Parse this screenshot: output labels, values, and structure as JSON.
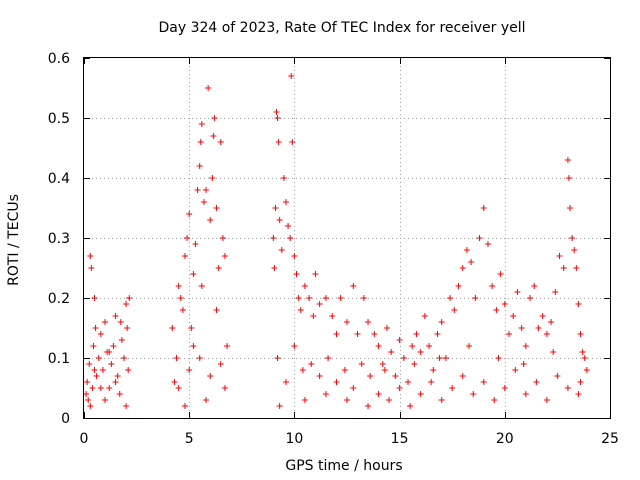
{
  "chart_data": {
    "type": "scatter",
    "title": "Day 324 of 2023, Rate Of TEC Index for receiver yell",
    "xlabel": "GPS time / hours",
    "ylabel": "ROTI / TECUs",
    "xlim": [
      0,
      25
    ],
    "ylim": [
      0,
      0.6
    ],
    "xticks": [
      0,
      5,
      10,
      15,
      20,
      25
    ],
    "yticks": [
      0,
      0.1,
      0.2,
      0.3,
      0.4,
      0.5,
      0.6
    ],
    "ytick_labels": [
      "0",
      "0.1",
      "0.2",
      "0.3",
      "0.4",
      "0.5",
      "0.6"
    ],
    "grid": true,
    "marker": "+",
    "color": "#ff0000",
    "points": [
      [
        0.1,
        0.04
      ],
      [
        0.15,
        0.06
      ],
      [
        0.2,
        0.03
      ],
      [
        0.25,
        0.09
      ],
      [
        0.3,
        0.27
      ],
      [
        0.35,
        0.25
      ],
      [
        0.4,
        0.05
      ],
      [
        0.45,
        0.12
      ],
      [
        0.5,
        0.2
      ],
      [
        0.55,
        0.15
      ],
      [
        0.6,
        0.07
      ],
      [
        0.7,
        0.1
      ],
      [
        0.8,
        0.14
      ],
      [
        0.9,
        0.08
      ],
      [
        1.0,
        0.16
      ],
      [
        1.1,
        0.11
      ],
      [
        1.2,
        0.05
      ],
      [
        1.3,
        0.09
      ],
      [
        1.4,
        0.12
      ],
      [
        1.5,
        0.17
      ],
      [
        1.6,
        0.07
      ],
      [
        1.7,
        0.04
      ],
      [
        1.8,
        0.13
      ],
      [
        1.9,
        0.1
      ],
      [
        2.0,
        0.19
      ],
      [
        2.05,
        0.15
      ],
      [
        2.1,
        0.08
      ],
      [
        2.15,
        0.2
      ],
      [
        0.3,
        0.02
      ],
      [
        1.0,
        0.03
      ],
      [
        2.0,
        0.02
      ],
      [
        1.5,
        0.06
      ],
      [
        0.8,
        0.05
      ],
      [
        0.5,
        0.08
      ],
      [
        1.2,
        0.11
      ],
      [
        1.75,
        0.16
      ],
      [
        4.2,
        0.15
      ],
      [
        4.3,
        0.06
      ],
      [
        4.4,
        0.1
      ],
      [
        4.5,
        0.22
      ],
      [
        4.6,
        0.2
      ],
      [
        4.7,
        0.18
      ],
      [
        4.8,
        0.27
      ],
      [
        4.9,
        0.3
      ],
      [
        5.0,
        0.34
      ],
      [
        5.1,
        0.15
      ],
      [
        5.2,
        0.24
      ],
      [
        5.3,
        0.29
      ],
      [
        5.4,
        0.38
      ],
      [
        5.5,
        0.42
      ],
      [
        5.55,
        0.46
      ],
      [
        5.6,
        0.49
      ],
      [
        5.7,
        0.36
      ],
      [
        5.8,
        0.38
      ],
      [
        5.9,
        0.55
      ],
      [
        6.0,
        0.33
      ],
      [
        6.1,
        0.4
      ],
      [
        6.15,
        0.47
      ],
      [
        6.2,
        0.5
      ],
      [
        6.3,
        0.35
      ],
      [
        6.4,
        0.25
      ],
      [
        6.5,
        0.46
      ],
      [
        6.6,
        0.3
      ],
      [
        6.7,
        0.27
      ],
      [
        6.8,
        0.12
      ],
      [
        4.5,
        0.05
      ],
      [
        5.0,
        0.08
      ],
      [
        5.5,
        0.1
      ],
      [
        6.0,
        0.07
      ],
      [
        6.5,
        0.09
      ],
      [
        4.8,
        0.02
      ],
      [
        5.8,
        0.03
      ],
      [
        6.7,
        0.05
      ],
      [
        5.2,
        0.12
      ],
      [
        6.3,
        0.18
      ],
      [
        5.6,
        0.22
      ],
      [
        9.0,
        0.3
      ],
      [
        9.05,
        0.25
      ],
      [
        9.1,
        0.35
      ],
      [
        9.15,
        0.51
      ],
      [
        9.2,
        0.5
      ],
      [
        9.25,
        0.46
      ],
      [
        9.3,
        0.33
      ],
      [
        9.4,
        0.28
      ],
      [
        9.5,
        0.4
      ],
      [
        9.6,
        0.36
      ],
      [
        9.7,
        0.32
      ],
      [
        9.8,
        0.3
      ],
      [
        9.85,
        0.57
      ],
      [
        9.9,
        0.46
      ],
      [
        10.0,
        0.27
      ],
      [
        10.1,
        0.24
      ],
      [
        10.2,
        0.2
      ],
      [
        10.3,
        0.18
      ],
      [
        10.5,
        0.22
      ],
      [
        10.7,
        0.2
      ],
      [
        10.9,
        0.17
      ],
      [
        11.0,
        0.24
      ],
      [
        11.2,
        0.19
      ],
      [
        11.5,
        0.2
      ],
      [
        11.8,
        0.17
      ],
      [
        12.0,
        0.14
      ],
      [
        12.2,
        0.2
      ],
      [
        12.5,
        0.16
      ],
      [
        12.8,
        0.22
      ],
      [
        13.0,
        0.14
      ],
      [
        13.3,
        0.2
      ],
      [
        13.5,
        0.16
      ],
      [
        13.8,
        0.14
      ],
      [
        9.2,
        0.1
      ],
      [
        9.6,
        0.06
      ],
      [
        10.0,
        0.12
      ],
      [
        10.4,
        0.08
      ],
      [
        10.8,
        0.09
      ],
      [
        11.2,
        0.07
      ],
      [
        11.6,
        0.1
      ],
      [
        12.0,
        0.06
      ],
      [
        12.4,
        0.08
      ],
      [
        12.8,
        0.05
      ],
      [
        13.2,
        0.09
      ],
      [
        13.6,
        0.07
      ],
      [
        9.3,
        0.02
      ],
      [
        10.5,
        0.03
      ],
      [
        11.5,
        0.04
      ],
      [
        12.5,
        0.03
      ],
      [
        13.5,
        0.02
      ],
      [
        14.0,
        0.12
      ],
      [
        14.2,
        0.09
      ],
      [
        14.4,
        0.15
      ],
      [
        14.6,
        0.11
      ],
      [
        14.8,
        0.07
      ],
      [
        15.0,
        0.13
      ],
      [
        15.2,
        0.1
      ],
      [
        15.4,
        0.06
      ],
      [
        15.6,
        0.12
      ],
      [
        15.8,
        0.14
      ],
      [
        16.0,
        0.11
      ],
      [
        16.2,
        0.17
      ],
      [
        16.4,
        0.12
      ],
      [
        16.6,
        0.08
      ],
      [
        16.8,
        0.14
      ],
      [
        17.0,
        0.16
      ],
      [
        17.2,
        0.1
      ],
      [
        17.4,
        0.2
      ],
      [
        17.6,
        0.18
      ],
      [
        17.8,
        0.22
      ],
      [
        18.0,
        0.25
      ],
      [
        18.2,
        0.28
      ],
      [
        18.4,
        0.26
      ],
      [
        18.6,
        0.2
      ],
      [
        18.8,
        0.3
      ],
      [
        19.0,
        0.35
      ],
      [
        19.2,
        0.29
      ],
      [
        19.4,
        0.22
      ],
      [
        19.6,
        0.18
      ],
      [
        19.8,
        0.24
      ],
      [
        20.0,
        0.19
      ],
      [
        20.2,
        0.14
      ],
      [
        20.4,
        0.17
      ],
      [
        20.6,
        0.21
      ],
      [
        20.8,
        0.15
      ],
      [
        21.0,
        0.12
      ],
      [
        21.2,
        0.2
      ],
      [
        21.4,
        0.22
      ],
      [
        21.6,
        0.15
      ],
      [
        21.8,
        0.17
      ],
      [
        22.0,
        0.14
      ],
      [
        22.2,
        0.16
      ],
      [
        22.4,
        0.21
      ],
      [
        22.6,
        0.27
      ],
      [
        22.8,
        0.25
      ],
      [
        23.0,
        0.43
      ],
      [
        23.05,
        0.4
      ],
      [
        23.1,
        0.35
      ],
      [
        23.2,
        0.3
      ],
      [
        23.3,
        0.28
      ],
      [
        23.4,
        0.25
      ],
      [
        23.5,
        0.19
      ],
      [
        23.6,
        0.14
      ],
      [
        23.7,
        0.11
      ],
      [
        23.8,
        0.1
      ],
      [
        23.9,
        0.08
      ],
      [
        14.0,
        0.04
      ],
      [
        14.5,
        0.03
      ],
      [
        15.0,
        0.05
      ],
      [
        15.5,
        0.02
      ],
      [
        16.0,
        0.04
      ],
      [
        16.5,
        0.06
      ],
      [
        17.0,
        0.03
      ],
      [
        17.5,
        0.05
      ],
      [
        18.0,
        0.07
      ],
      [
        18.5,
        0.04
      ],
      [
        19.0,
        0.06
      ],
      [
        19.5,
        0.03
      ],
      [
        20.0,
        0.05
      ],
      [
        20.5,
        0.08
      ],
      [
        21.0,
        0.04
      ],
      [
        21.5,
        0.06
      ],
      [
        22.0,
        0.03
      ],
      [
        22.5,
        0.07
      ],
      [
        23.0,
        0.05
      ],
      [
        23.5,
        0.04
      ],
      [
        14.3,
        0.08
      ],
      [
        15.7,
        0.09
      ],
      [
        16.9,
        0.1
      ],
      [
        18.3,
        0.12
      ],
      [
        19.7,
        0.1
      ],
      [
        20.9,
        0.09
      ],
      [
        22.3,
        0.11
      ],
      [
        23.6,
        0.06
      ]
    ]
  }
}
